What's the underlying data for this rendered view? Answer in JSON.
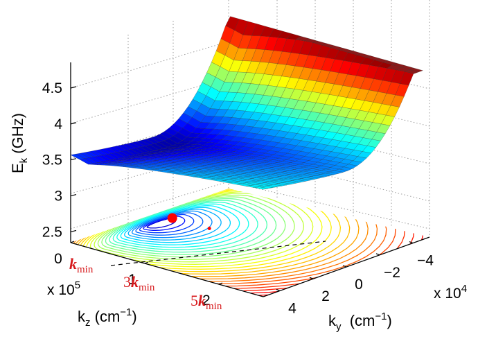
{
  "chart_data": {
    "type": "surface",
    "surface": {
      "colormap": "jet",
      "function": "Ek(ky, kz)",
      "minimum": {
        "ky": 0,
        "kz": 0.25,
        "E": 3.35
      },
      "maximum_ridge": {
        "ky": -4.5,
        "E": 4.7
      }
    },
    "axes": {
      "z": {
        "label": "E",
        "label_sub": "k",
        "label_unit": " (GHz)",
        "ticks": [
          "2.5",
          "3",
          "3.5",
          "4",
          "4.5"
        ],
        "tick_values": [
          2.5,
          3,
          3.5,
          4,
          4.5
        ],
        "range": [
          2.35,
          4.75
        ]
      },
      "kz": {
        "label": "k",
        "label_sub": "z",
        "label_unit_pre": " (cm",
        "label_unit_exp": "−1",
        "label_unit_post": ")",
        "ticks": [
          "0",
          "1",
          "2"
        ],
        "tick_values": [
          0,
          1,
          2
        ],
        "multiplier_text": "x 10",
        "multiplier_exp": "5",
        "range": [
          0,
          2.6
        ]
      },
      "ky": {
        "label": "k",
        "label_sub": "y",
        "label_unit_pre": "  (cm",
        "label_unit_exp": "−1",
        "label_unit_post": ")",
        "ticks": [
          "4",
          "2",
          "0",
          "−2",
          "−4"
        ],
        "tick_values": [
          4,
          2,
          0,
          -2,
          -4
        ],
        "multiplier_text": "x 10",
        "multiplier_exp": "4",
        "range": [
          -5,
          5
        ]
      }
    },
    "annotations": [
      {
        "id": "kmin1",
        "coef": "",
        "text": "k",
        "sub": "min",
        "kz": 0.25
      },
      {
        "id": "kmin3",
        "coef": "3",
        "text": "k",
        "sub": "min",
        "kz": 0.75
      },
      {
        "id": "kmin5",
        "coef": "5",
        "text": "k",
        "sub": "min",
        "kz": 1.25
      }
    ],
    "markers": [
      {
        "name": "minimum",
        "ky": 0,
        "kz": 0.25,
        "color": "#ff0000"
      },
      {
        "name": "small-dot",
        "ky": 0,
        "kz": 0.75,
        "color": "#ff0000"
      }
    ],
    "grid": true,
    "contour_projection": true
  }
}
